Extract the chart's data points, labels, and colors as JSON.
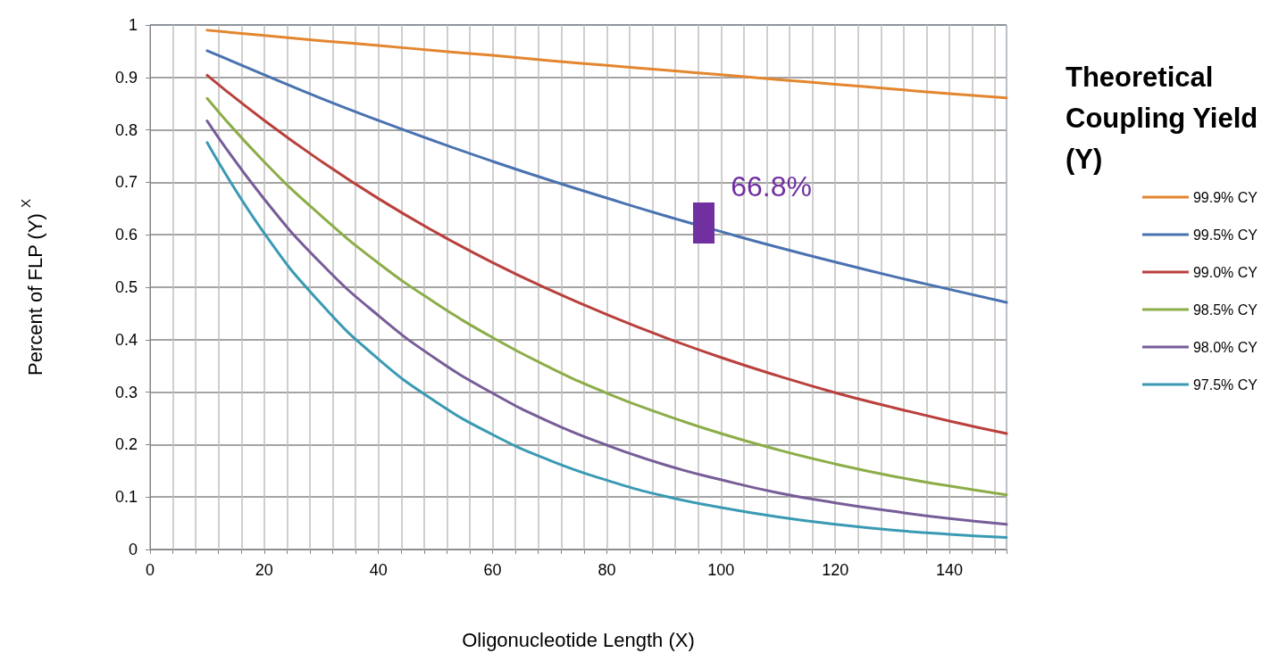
{
  "chart_data": {
    "type": "line",
    "xlabel": "Oligonucleotide Length (X)",
    "ylabel": "Percent of FLP (Y)$^{X}$",
    "legend_title": "Theoretical Coupling Yield (Y)",
    "legend": "right",
    "grid": true,
    "marker": "none",
    "line_style": "solid",
    "x": [
      10,
      20,
      30,
      40,
      50,
      60,
      70,
      80,
      90,
      100,
      110,
      120,
      130,
      140,
      150
    ],
    "xlim": [
      0,
      150
    ],
    "xticks": [
      0,
      {
        "value": 4,
        "label": null
      },
      {
        "value": 8,
        "label": null
      },
      {
        "value": 12,
        "label": null
      },
      {
        "value": 16,
        "label": null
      },
      20,
      {
        "value": 24,
        "label": null
      },
      {
        "value": 28,
        "label": null
      },
      {
        "value": 32,
        "label": null
      },
      {
        "value": 36,
        "label": null
      },
      40,
      {
        "value": 44,
        "label": null
      },
      {
        "value": 48,
        "label": null
      },
      {
        "value": 52,
        "label": null
      },
      {
        "value": 56,
        "label": null
      },
      60,
      {
        "value": 64,
        "label": null
      },
      {
        "value": 68,
        "label": null
      },
      {
        "value": 72,
        "label": null
      },
      {
        "value": 76,
        "label": null
      },
      80,
      {
        "value": 84,
        "label": null
      },
      {
        "value": 88,
        "label": null
      },
      {
        "value": 92,
        "label": null
      },
      {
        "value": 96,
        "label": null
      },
      100,
      {
        "value": 104,
        "label": null
      },
      {
        "value": 108,
        "label": null
      },
      {
        "value": 112,
        "label": null
      },
      {
        "value": 116,
        "label": null
      },
      120,
      {
        "value": 124,
        "label": null
      },
      {
        "value": 128,
        "label": null
      },
      {
        "value": 132,
        "label": null
      },
      {
        "value": 136,
        "label": null
      },
      140,
      {
        "value": 144,
        "label": null
      },
      {
        "value": 148,
        "label": null
      }
    ],
    "ylim": [
      0,
      1
    ],
    "yticks": [
      0,
      0.1,
      0.2,
      0.3,
      0.4,
      0.5,
      0.6,
      0.7,
      0.8,
      0.9,
      1
    ],
    "series": [
      {
        "name": "99.9% CY",
        "color": "#e3862f",
        "values": [
          0.99,
          0.98,
          0.97,
          0.961,
          0.951,
          0.942,
          0.932,
          0.923,
          0.914,
          0.905,
          0.896,
          0.887,
          0.878,
          0.869,
          0.861
        ]
      },
      {
        "name": "99.5% CY",
        "color": "#4a72b0",
        "values": [
          0.951,
          0.905,
          0.86,
          0.818,
          0.778,
          0.74,
          0.704,
          0.67,
          0.637,
          0.606,
          0.576,
          0.548,
          0.521,
          0.496,
          0.471
        ]
      },
      {
        "name": "99.0% CY",
        "color": "#b9403d",
        "values": [
          0.904,
          0.818,
          0.74,
          0.669,
          0.605,
          0.547,
          0.495,
          0.448,
          0.405,
          0.366,
          0.331,
          0.299,
          0.271,
          0.245,
          0.221
        ]
      },
      {
        "name": "98.5% CY",
        "color": "#8cad48",
        "values": [
          0.86,
          0.739,
          0.636,
          0.546,
          0.47,
          0.404,
          0.347,
          0.298,
          0.257,
          0.221,
          0.19,
          0.163,
          0.14,
          0.121,
          0.104
        ]
      },
      {
        "name": "98.0% CY",
        "color": "#775d98",
        "values": [
          0.817,
          0.668,
          0.545,
          0.446,
          0.364,
          0.298,
          0.243,
          0.199,
          0.162,
          0.133,
          0.108,
          0.089,
          0.073,
          0.059,
          0.048
        ]
      },
      {
        "name": "97.5% CY",
        "color": "#3a9ab3",
        "values": [
          0.776,
          0.603,
          0.468,
          0.363,
          0.282,
          0.219,
          0.17,
          0.132,
          0.102,
          0.08,
          0.062,
          0.048,
          0.037,
          0.029,
          0.023
        ]
      }
    ],
    "annotations": [
      {
        "text": "66.8%",
        "x": 97,
        "y": 0.62
      }
    ]
  }
}
